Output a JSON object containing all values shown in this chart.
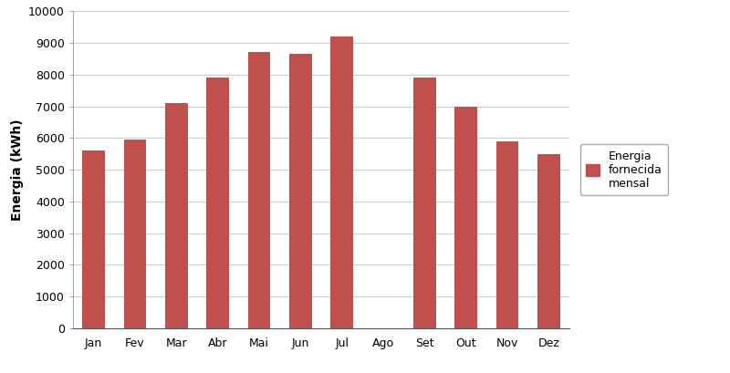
{
  "categories": [
    "Jan",
    "Fev",
    "Mar",
    "Abr",
    "Mai",
    "Jun",
    "Jul",
    "Ago",
    "Set",
    "Out",
    "Nov",
    "Dez"
  ],
  "values": [
    5600,
    5950,
    7100,
    7900,
    8700,
    8650,
    9200,
    0,
    7900,
    7000,
    5900,
    5500
  ],
  "bar_color": "#C0504D",
  "ylabel": "Energia (kWh)",
  "ylim": [
    0,
    10000
  ],
  "yticks": [
    0,
    1000,
    2000,
    3000,
    4000,
    5000,
    6000,
    7000,
    8000,
    9000,
    10000
  ],
  "legend_label": "Energia\nfornecida\nmensal",
  "legend_color": "#C0504D",
  "grid": true,
  "background_color": "#FFFFFF",
  "bar_width": 0.55
}
